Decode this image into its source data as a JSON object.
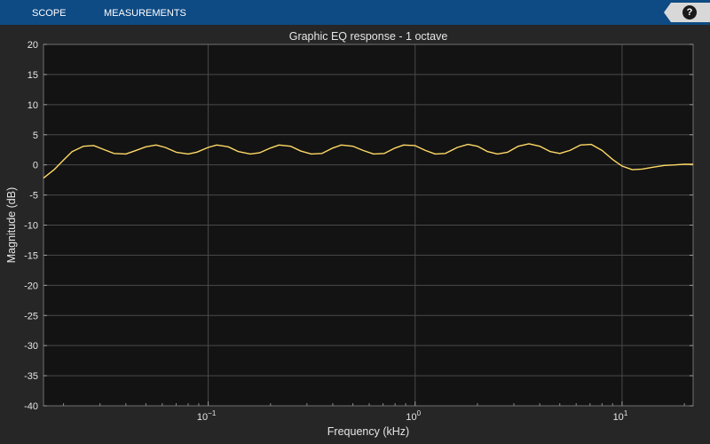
{
  "toolbar": {
    "tabs": [
      {
        "label": "SCOPE"
      },
      {
        "label": "MEASUREMENTS"
      }
    ],
    "help_icon": "question-mark-icon",
    "help_glyph": "?"
  },
  "colors": {
    "toolbar_bg": "#0e4a83",
    "figure_bg": "#262626",
    "axes_bg": "#131313",
    "grid": "#4a4a4a",
    "line": "#ffd966",
    "text": "#e6e6e6"
  },
  "chart_data": {
    "type": "line",
    "title": "Graphic EQ response - 1 octave",
    "xlabel": "Frequency (kHz)",
    "ylabel": "Magnitude (dB)",
    "xscale": "log",
    "xlim": [
      0.016,
      22.05
    ],
    "ylim": [
      -40,
      20
    ],
    "yticks": [
      20,
      15,
      10,
      5,
      0,
      -5,
      -10,
      -15,
      -20,
      -25,
      -30,
      -35,
      -40
    ],
    "xticks": [
      {
        "value": 0.1,
        "base": "10",
        "exp": "−1"
      },
      {
        "value": 1,
        "base": "10",
        "exp": "0"
      },
      {
        "value": 10,
        "base": "10",
        "exp": "1"
      }
    ],
    "grid": true,
    "series": [
      {
        "x": [
          0.016,
          0.018,
          0.02,
          0.022,
          0.025,
          0.028,
          0.031,
          0.035,
          0.04,
          0.044,
          0.05,
          0.056,
          0.062,
          0.07,
          0.08,
          0.088,
          0.1,
          0.11,
          0.125,
          0.14,
          0.16,
          0.177,
          0.2,
          0.22,
          0.25,
          0.28,
          0.315,
          0.355,
          0.4,
          0.44,
          0.5,
          0.56,
          0.63,
          0.71,
          0.8,
          0.88,
          1.0,
          1.12,
          1.25,
          1.4,
          1.6,
          1.8,
          2.0,
          2.24,
          2.5,
          2.8,
          3.15,
          3.55,
          4.0,
          4.5,
          5.0,
          5.6,
          6.3,
          7.1,
          8.0,
          9.0,
          10.0,
          11.2,
          12.5,
          14.0,
          16.0,
          18.0,
          20.0,
          22.05
        ],
        "y": [
          -2.2,
          -0.8,
          0.8,
          2.2,
          3.1,
          3.2,
          2.6,
          1.9,
          1.8,
          2.3,
          3.0,
          3.3,
          2.9,
          2.1,
          1.8,
          2.1,
          2.9,
          3.3,
          3.0,
          2.2,
          1.8,
          2.0,
          2.8,
          3.3,
          3.1,
          2.3,
          1.8,
          1.9,
          2.8,
          3.3,
          3.1,
          2.4,
          1.8,
          1.9,
          2.8,
          3.3,
          3.2,
          2.4,
          1.8,
          1.9,
          2.9,
          3.4,
          3.1,
          2.2,
          1.8,
          2.1,
          3.1,
          3.5,
          3.1,
          2.2,
          1.9,
          2.4,
          3.3,
          3.4,
          2.4,
          0.9,
          -0.2,
          -0.8,
          -0.7,
          -0.4,
          -0.1,
          0.0,
          0.1,
          0.1
        ]
      }
    ]
  }
}
